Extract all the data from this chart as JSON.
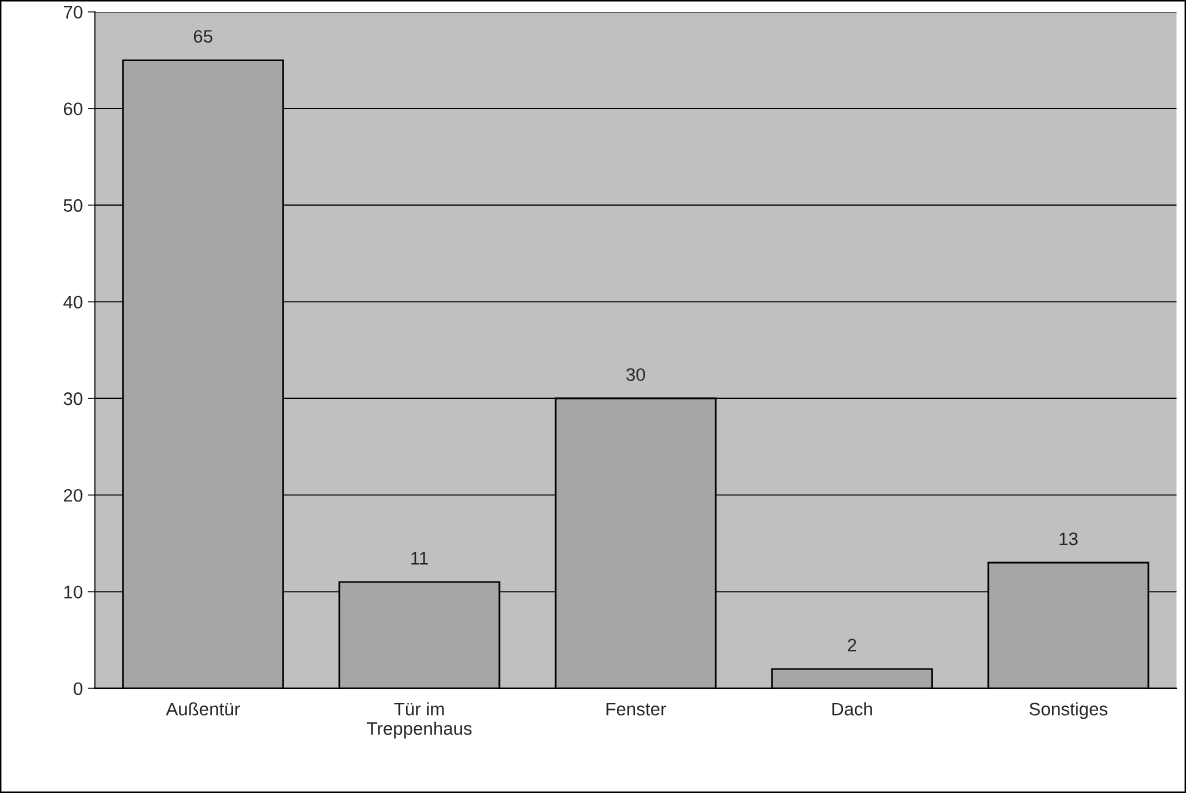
{
  "chart_data": {
    "type": "bar",
    "categories": [
      "Außentür",
      "Tür im\nTreppenhaus",
      "Fenster",
      "Dach",
      "Sonstiges"
    ],
    "values": [
      65,
      11,
      30,
      2,
      13
    ],
    "color": "#a6a6a6",
    "ylim": [
      0,
      70
    ],
    "yticks": [
      0,
      10,
      20,
      30,
      40,
      50,
      60,
      70
    ],
    "grid": "y",
    "data_labels": true
  }
}
